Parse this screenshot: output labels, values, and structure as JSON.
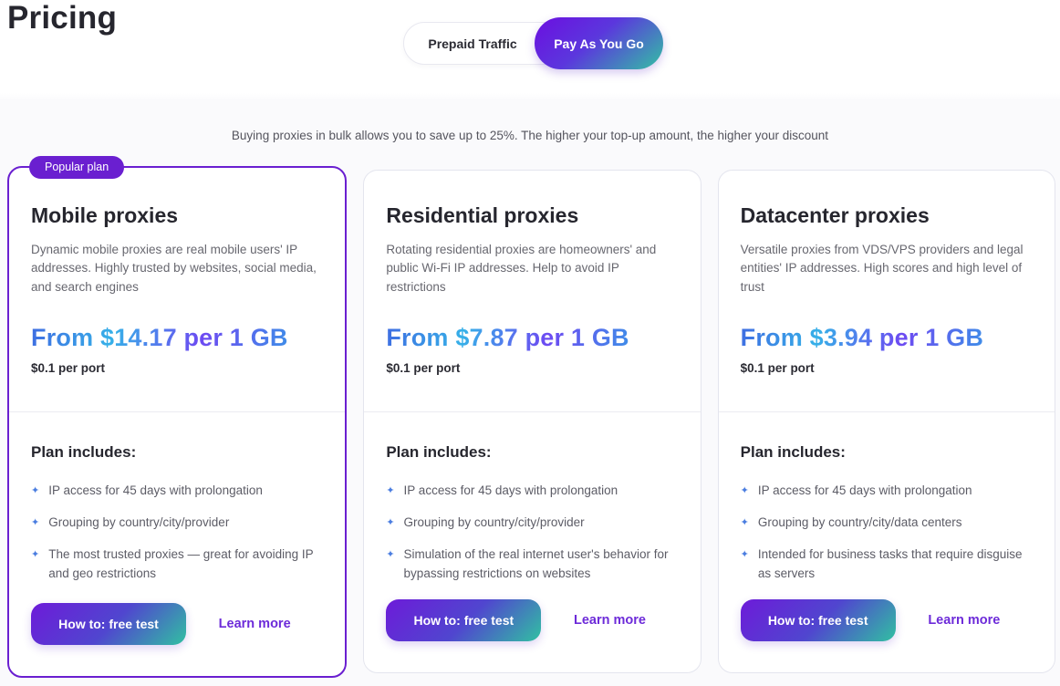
{
  "page": {
    "title": "Pricing",
    "subtitle": "Buying proxies in bulk allows you to save up to 25%. The higher your top-up amount, the higher your discount"
  },
  "toggle": {
    "options": [
      {
        "label": "Prepaid Traffic",
        "active": false
      },
      {
        "label": "Pay As You Go",
        "active": true
      }
    ]
  },
  "theme": {
    "accent_purple": "#6a1fd0",
    "bullet_blue": "#4a7de0",
    "button_gradient": [
      "#6d1bd9",
      "#5046cf",
      "#2ecd9d"
    ],
    "price_gradient": [
      "#3f6ce2",
      "#36b0e8",
      "#6d4af2",
      "#3e8ee8"
    ],
    "bullet_icon": "✦"
  },
  "cards": [
    {
      "badge": "Popular plan",
      "title": "Mobile proxies",
      "description": "Dynamic mobile proxies are real mobile users' IP addresses. Highly trusted by websites, social media, and search engines",
      "price": "From $14.17 per 1 GB",
      "price_note": "$0.1 per port",
      "includes_title": "Plan includes:",
      "features": [
        "IP access for 45 days with prolongation",
        "Grouping by country/city/provider",
        "The most trusted proxies — great for avoiding IP and geo restrictions"
      ],
      "primary_button": "How to: free test",
      "secondary_link": "Learn more"
    },
    {
      "title": "Residential proxies",
      "description": "Rotating residential proxies are homeowners' and public Wi-Fi IP addresses. Help to avoid IP restrictions",
      "price": "From $7.87 per 1 GB",
      "price_note": "$0.1 per port",
      "includes_title": "Plan includes:",
      "features": [
        "IP access for 45 days with prolongation",
        "Grouping by country/city/provider",
        "Simulation of the real internet user's behavior for bypassing restrictions on websites"
      ],
      "primary_button": "How to: free test",
      "secondary_link": "Learn more"
    },
    {
      "title": "Datacenter proxies",
      "description": "Versatile proxies from VDS/VPS providers and legal entities' IP addresses. High scores and high level of trust",
      "price": "From $3.94 per 1 GB",
      "price_note": "$0.1 per port",
      "includes_title": "Plan includes:",
      "features": [
        "IP access for 45 days with prolongation",
        "Grouping by country/city/data centers",
        "Intended for business tasks that require disguise as servers"
      ],
      "primary_button": "How to: free test",
      "secondary_link": "Learn more"
    }
  ]
}
